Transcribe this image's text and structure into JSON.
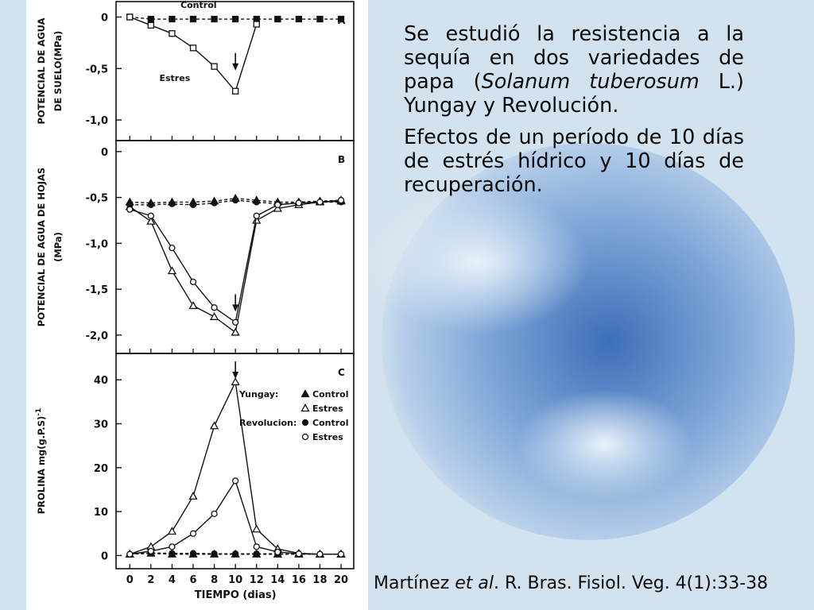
{
  "slide": {
    "paragraph1": {
      "before": "Se estudió la resistencia a la sequía en dos variedades de papa (",
      "italic": "Solanum tuberosum",
      "after": " L.) Yungay y Revolución."
    },
    "paragraph2": "Efectos de un período de 10 días de estrés hídrico y 10 días de recuperación.",
    "citation": {
      "authors": "Martínez ",
      "etal": "et al",
      "rest": ". R. Bras. Fisiol. Veg. 4(1):33-38"
    }
  },
  "chart_data": [
    {
      "type": "line",
      "panel_letter": "A",
      "ylabel_lines": [
        "POTENCIAL DE AGUA",
        "DE SUELO(MPa)"
      ],
      "yticks": [
        0,
        -0.5,
        -1.0
      ],
      "ytick_labels": [
        "0",
        "-0,5",
        "-1,0"
      ],
      "ylim": [
        -1.2,
        0.15
      ],
      "arrow_at_x": 10,
      "series": [
        {
          "name": "Control",
          "marker": "filled-square",
          "dashed": true,
          "x": [
            0,
            2,
            4,
            6,
            8,
            10,
            12,
            14,
            16,
            18,
            20
          ],
          "y": [
            0,
            -0.02,
            -0.02,
            -0.02,
            -0.02,
            -0.02,
            -0.02,
            -0.02,
            -0.02,
            -0.02,
            -0.02
          ]
        },
        {
          "name": "Estres",
          "marker": "open-square",
          "dashed": false,
          "x": [
            0,
            2,
            4,
            6,
            8,
            10,
            12
          ],
          "y": [
            0,
            -0.08,
            -0.16,
            -0.3,
            -0.48,
            -0.72,
            -0.07
          ]
        }
      ]
    },
    {
      "type": "line",
      "panel_letter": "B",
      "ylabel_lines": [
        "POTENCIAL DE AGUA DE HOJAS",
        "(MPa)"
      ],
      "yticks": [
        0,
        -0.5,
        -1.0,
        -1.5,
        -2.0
      ],
      "ytick_labels": [
        "0",
        "-0,5",
        "-1,0",
        "-1,5",
        "-2,0"
      ],
      "ylim": [
        -2.2,
        0.12
      ],
      "arrow_at_x": 10,
      "series": [
        {
          "name": "Yungay Control",
          "marker": "filled-triangle",
          "dashed": true,
          "x": [
            0,
            2,
            4,
            6,
            8,
            10,
            12,
            14,
            16,
            18,
            20
          ],
          "y": [
            -0.55,
            -0.56,
            -0.55,
            -0.55,
            -0.54,
            -0.51,
            -0.53,
            -0.55,
            -0.55,
            -0.54,
            -0.53
          ]
        },
        {
          "name": "Yungay Estres",
          "marker": "open-triangle",
          "dashed": false,
          "x": [
            0,
            2,
            4,
            6,
            8,
            10,
            12,
            14,
            16,
            18,
            20
          ],
          "y": [
            -0.6,
            -0.76,
            -1.3,
            -1.68,
            -1.8,
            -1.97,
            -0.75,
            -0.62,
            -0.58,
            -0.55,
            -0.54
          ]
        },
        {
          "name": "Revolucion Control",
          "marker": "filled-circle",
          "dashed": true,
          "x": [
            0,
            2,
            4,
            6,
            8,
            10,
            12,
            14,
            16,
            18,
            20
          ],
          "y": [
            -0.58,
            -0.58,
            -0.57,
            -0.58,
            -0.56,
            -0.53,
            -0.55,
            -0.57,
            -0.56,
            -0.55,
            -0.55
          ]
        },
        {
          "name": "Revolucion Estres",
          "marker": "open-circle",
          "dashed": false,
          "x": [
            0,
            2,
            4,
            6,
            8,
            10,
            12,
            14,
            16,
            18,
            20
          ],
          "y": [
            -0.63,
            -0.7,
            -1.05,
            -1.42,
            -1.7,
            -1.86,
            -0.7,
            -0.58,
            -0.56,
            -0.55,
            -0.53
          ]
        }
      ]
    },
    {
      "type": "line",
      "panel_letter": "C",
      "ylabel_lines": [
        "PROLINA  mg(g.P.S)"
      ],
      "ylabel_superscript": "-1",
      "yticks": [
        0,
        10,
        20,
        30,
        40
      ],
      "ytick_labels": [
        "0",
        "10",
        "20",
        "30",
        "40"
      ],
      "ylim": [
        -3,
        46
      ],
      "arrow_at_x": 10,
      "xticks": [
        0,
        2,
        4,
        6,
        8,
        10,
        12,
        14,
        16,
        18,
        20
      ],
      "xtick_labels": [
        "0",
        "2",
        "4",
        "6",
        "8",
        "10",
        "12",
        "14",
        "16",
        "18",
        "20"
      ],
      "xlabel": "TIEMPO (dias)",
      "legend": {
        "placement": "right",
        "groups": [
          {
            "group": "Yungay:",
            "entries": [
              {
                "label": "Control",
                "marker": "filled-triangle"
              },
              {
                "label": "Estres",
                "marker": "open-triangle"
              }
            ]
          },
          {
            "group": "Revolucion:",
            "entries": [
              {
                "label": "Control",
                "marker": "filled-circle"
              },
              {
                "label": "Estres",
                "marker": "open-circle"
              }
            ]
          }
        ]
      },
      "series": [
        {
          "name": "Yungay Control",
          "marker": "filled-triangle",
          "dashed": true,
          "x": [
            0,
            2,
            4,
            6,
            8,
            10,
            12,
            14,
            16,
            18,
            20
          ],
          "y": [
            0.3,
            0.5,
            0.3,
            0.3,
            0.3,
            0.3,
            0.3,
            0.3,
            0.3,
            0.3,
            0.3
          ]
        },
        {
          "name": "Yungay Estres",
          "marker": "open-triangle",
          "dashed": false,
          "x": [
            0,
            2,
            4,
            6,
            8,
            10,
            12,
            14,
            16,
            18,
            20
          ],
          "y": [
            0.3,
            2.0,
            5.5,
            13.5,
            29.5,
            39.5,
            6.0,
            1.5,
            0.5,
            0.3,
            0.3
          ]
        },
        {
          "name": "Revolucion Control",
          "marker": "filled-circle",
          "dashed": true,
          "x": [
            0,
            2,
            4,
            6,
            8,
            10,
            12,
            14,
            16,
            18,
            20
          ],
          "y": [
            0.3,
            0.6,
            0.5,
            0.5,
            0.4,
            0.4,
            0.4,
            0.4,
            0.3,
            0.3,
            0.3
          ]
        },
        {
          "name": "Revolucion Estres",
          "marker": "open-circle",
          "dashed": false,
          "x": [
            0,
            2,
            4,
            6,
            8,
            10,
            12,
            14,
            16,
            18,
            20
          ],
          "y": [
            0.3,
            1.0,
            2.0,
            5.0,
            9.5,
            17.0,
            2.0,
            0.8,
            0.4,
            0.3,
            0.3
          ]
        }
      ]
    }
  ]
}
